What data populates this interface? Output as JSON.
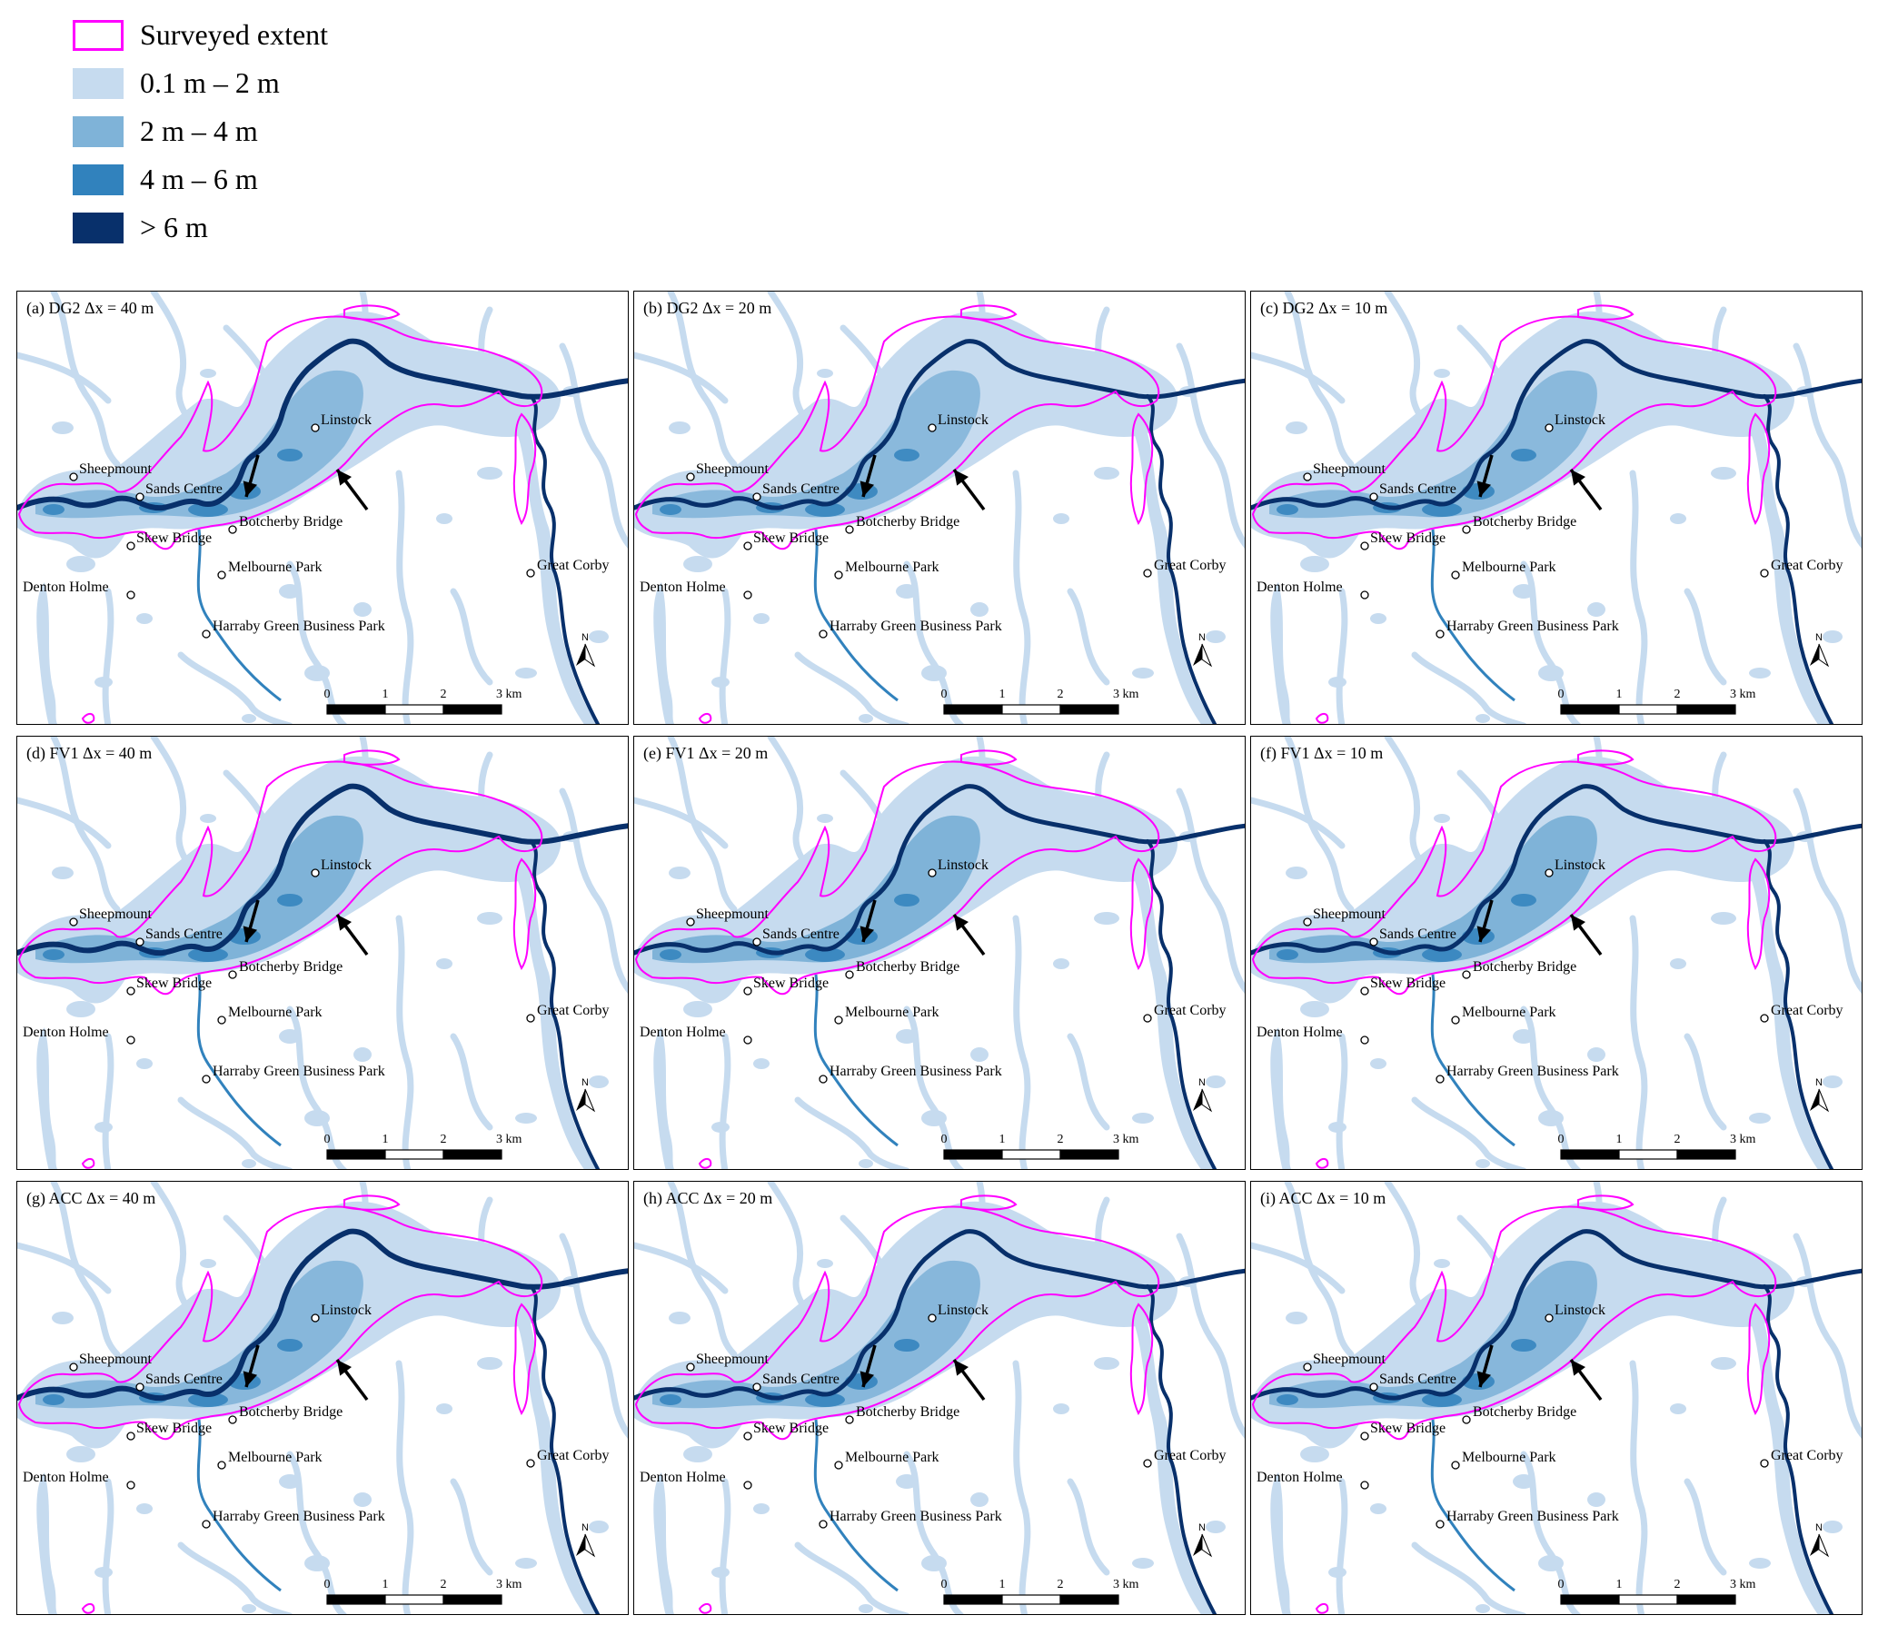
{
  "legend": {
    "items": [
      {
        "label": "Surveyed extent",
        "type": "outline",
        "color": "#ff00ff"
      },
      {
        "label": "0.1 m – 2 m",
        "type": "fill",
        "color": "#c6dbef"
      },
      {
        "label": "2 m – 4 m",
        "type": "fill",
        "color": "#7fb3d8"
      },
      {
        "label": "4 m – 6 m",
        "type": "fill",
        "color": "#3182bd"
      },
      {
        "label": "> 6 m",
        "type": "fill",
        "color": "#08306b"
      }
    ]
  },
  "panels": [
    {
      "title": "(a) DG2 Δx = 40 m"
    },
    {
      "title": "(b) DG2 Δx = 20 m"
    },
    {
      "title": "(c) DG2 Δx = 10 m"
    },
    {
      "title": "(d) FV1 Δx = 40 m"
    },
    {
      "title": "(e) FV1 Δx = 20 m"
    },
    {
      "title": "(f) FV1 Δx = 10 m"
    },
    {
      "title": "(g) ACC Δx = 40 m"
    },
    {
      "title": "(h) ACC Δx = 20 m"
    },
    {
      "title": "(i) ACC Δx = 10 m"
    }
  ],
  "place_labels": [
    "Linstock",
    "Sheepmount",
    "Sands Centre",
    "Botcherby Bridge",
    "Skew Bridge",
    "Melbourne Park",
    "Denton Holme",
    "Great Corby",
    "Harraby Green Business Park"
  ],
  "scale_bar": {
    "ticks": [
      "0",
      "1",
      "2"
    ],
    "end_label": "3 km"
  },
  "north_arrow": {
    "label": "N"
  },
  "colors": {
    "surveyed_outline": "#ff00ff",
    "depth_shallow": "#c6dbef",
    "depth_medium": "#7fb3d8",
    "depth_deep": "#3182bd",
    "depth_very_deep": "#08306b",
    "background": "#ffffff"
  }
}
